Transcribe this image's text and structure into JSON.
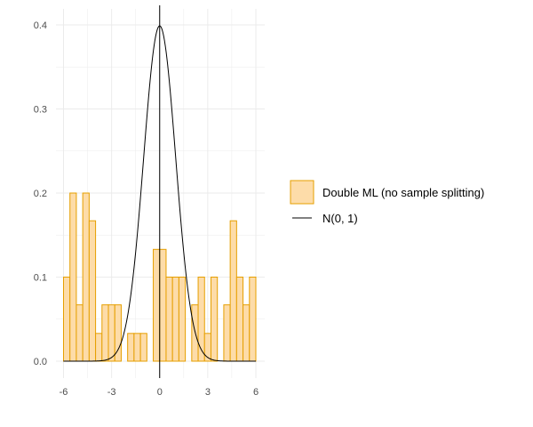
{
  "chart_data": {
    "type": "histogram",
    "title": "",
    "xlabel": "",
    "ylabel": "",
    "xlim": [
      -6,
      6
    ],
    "ylim": [
      0,
      0.4
    ],
    "x_ticks": [
      -6,
      -3,
      0,
      3,
      6
    ],
    "x_tick_labels": [
      "-6",
      "-3",
      "0",
      "3",
      "6"
    ],
    "y_ticks": [
      0.0,
      0.1,
      0.2,
      0.3,
      0.4
    ],
    "y_tick_labels": [
      "0.0",
      "0.1",
      "0.2",
      "0.3",
      "0.4"
    ],
    "grid": true,
    "legend_position": "right",
    "bin_width": 0.4,
    "bins": [
      {
        "x0": -6.0,
        "x1": -5.6,
        "density": 0.1
      },
      {
        "x0": -5.6,
        "x1": -5.2,
        "density": 0.2
      },
      {
        "x0": -5.2,
        "x1": -4.8,
        "density": 0.067
      },
      {
        "x0": -4.8,
        "x1": -4.4,
        "density": 0.2
      },
      {
        "x0": -4.4,
        "x1": -4.0,
        "density": 0.167
      },
      {
        "x0": -4.0,
        "x1": -3.6,
        "density": 0.033
      },
      {
        "x0": -3.6,
        "x1": -3.2,
        "density": 0.067
      },
      {
        "x0": -3.2,
        "x1": -2.8,
        "density": 0.067
      },
      {
        "x0": -2.8,
        "x1": -2.4,
        "density": 0.067
      },
      {
        "x0": -2.4,
        "x1": -2.0,
        "density": 0.0
      },
      {
        "x0": -2.0,
        "x1": -1.6,
        "density": 0.033
      },
      {
        "x0": -1.6,
        "x1": -1.2,
        "density": 0.033
      },
      {
        "x0": -1.2,
        "x1": -0.8,
        "density": 0.033
      },
      {
        "x0": -0.8,
        "x1": -0.4,
        "density": 0.0
      },
      {
        "x0": -0.4,
        "x1": 0.0,
        "density": 0.133
      },
      {
        "x0": 0.0,
        "x1": 0.4,
        "density": 0.133
      },
      {
        "x0": 0.4,
        "x1": 0.8,
        "density": 0.1
      },
      {
        "x0": 0.8,
        "x1": 1.2,
        "density": 0.1
      },
      {
        "x0": 1.2,
        "x1": 1.6,
        "density": 0.1
      },
      {
        "x0": 1.6,
        "x1": 2.0,
        "density": 0.0
      },
      {
        "x0": 2.0,
        "x1": 2.4,
        "density": 0.067
      },
      {
        "x0": 2.4,
        "x1": 2.8,
        "density": 0.1
      },
      {
        "x0": 2.8,
        "x1": 3.2,
        "density": 0.033
      },
      {
        "x0": 3.2,
        "x1": 3.6,
        "density": 0.1
      },
      {
        "x0": 3.6,
        "x1": 4.0,
        "density": 0.0
      },
      {
        "x0": 4.0,
        "x1": 4.4,
        "density": 0.067
      },
      {
        "x0": 4.4,
        "x1": 4.8,
        "density": 0.167
      },
      {
        "x0": 4.8,
        "x1": 5.2,
        "density": 0.1
      },
      {
        "x0": 5.2,
        "x1": 5.6,
        "density": 0.067
      },
      {
        "x0": 5.6,
        "x1": 6.0,
        "density": 0.1
      }
    ],
    "series": [
      {
        "name": "Double ML (no sample splitting)",
        "kind": "histogram",
        "fill": "#FDDCA9",
        "stroke": "#E69F00"
      },
      {
        "name": "N(0, 1)",
        "kind": "density_line",
        "color": "#000000",
        "mean": 0,
        "sd": 1
      }
    ],
    "reference_lines": [
      {
        "orientation": "vertical",
        "x": 0,
        "color": "#000000"
      }
    ]
  }
}
